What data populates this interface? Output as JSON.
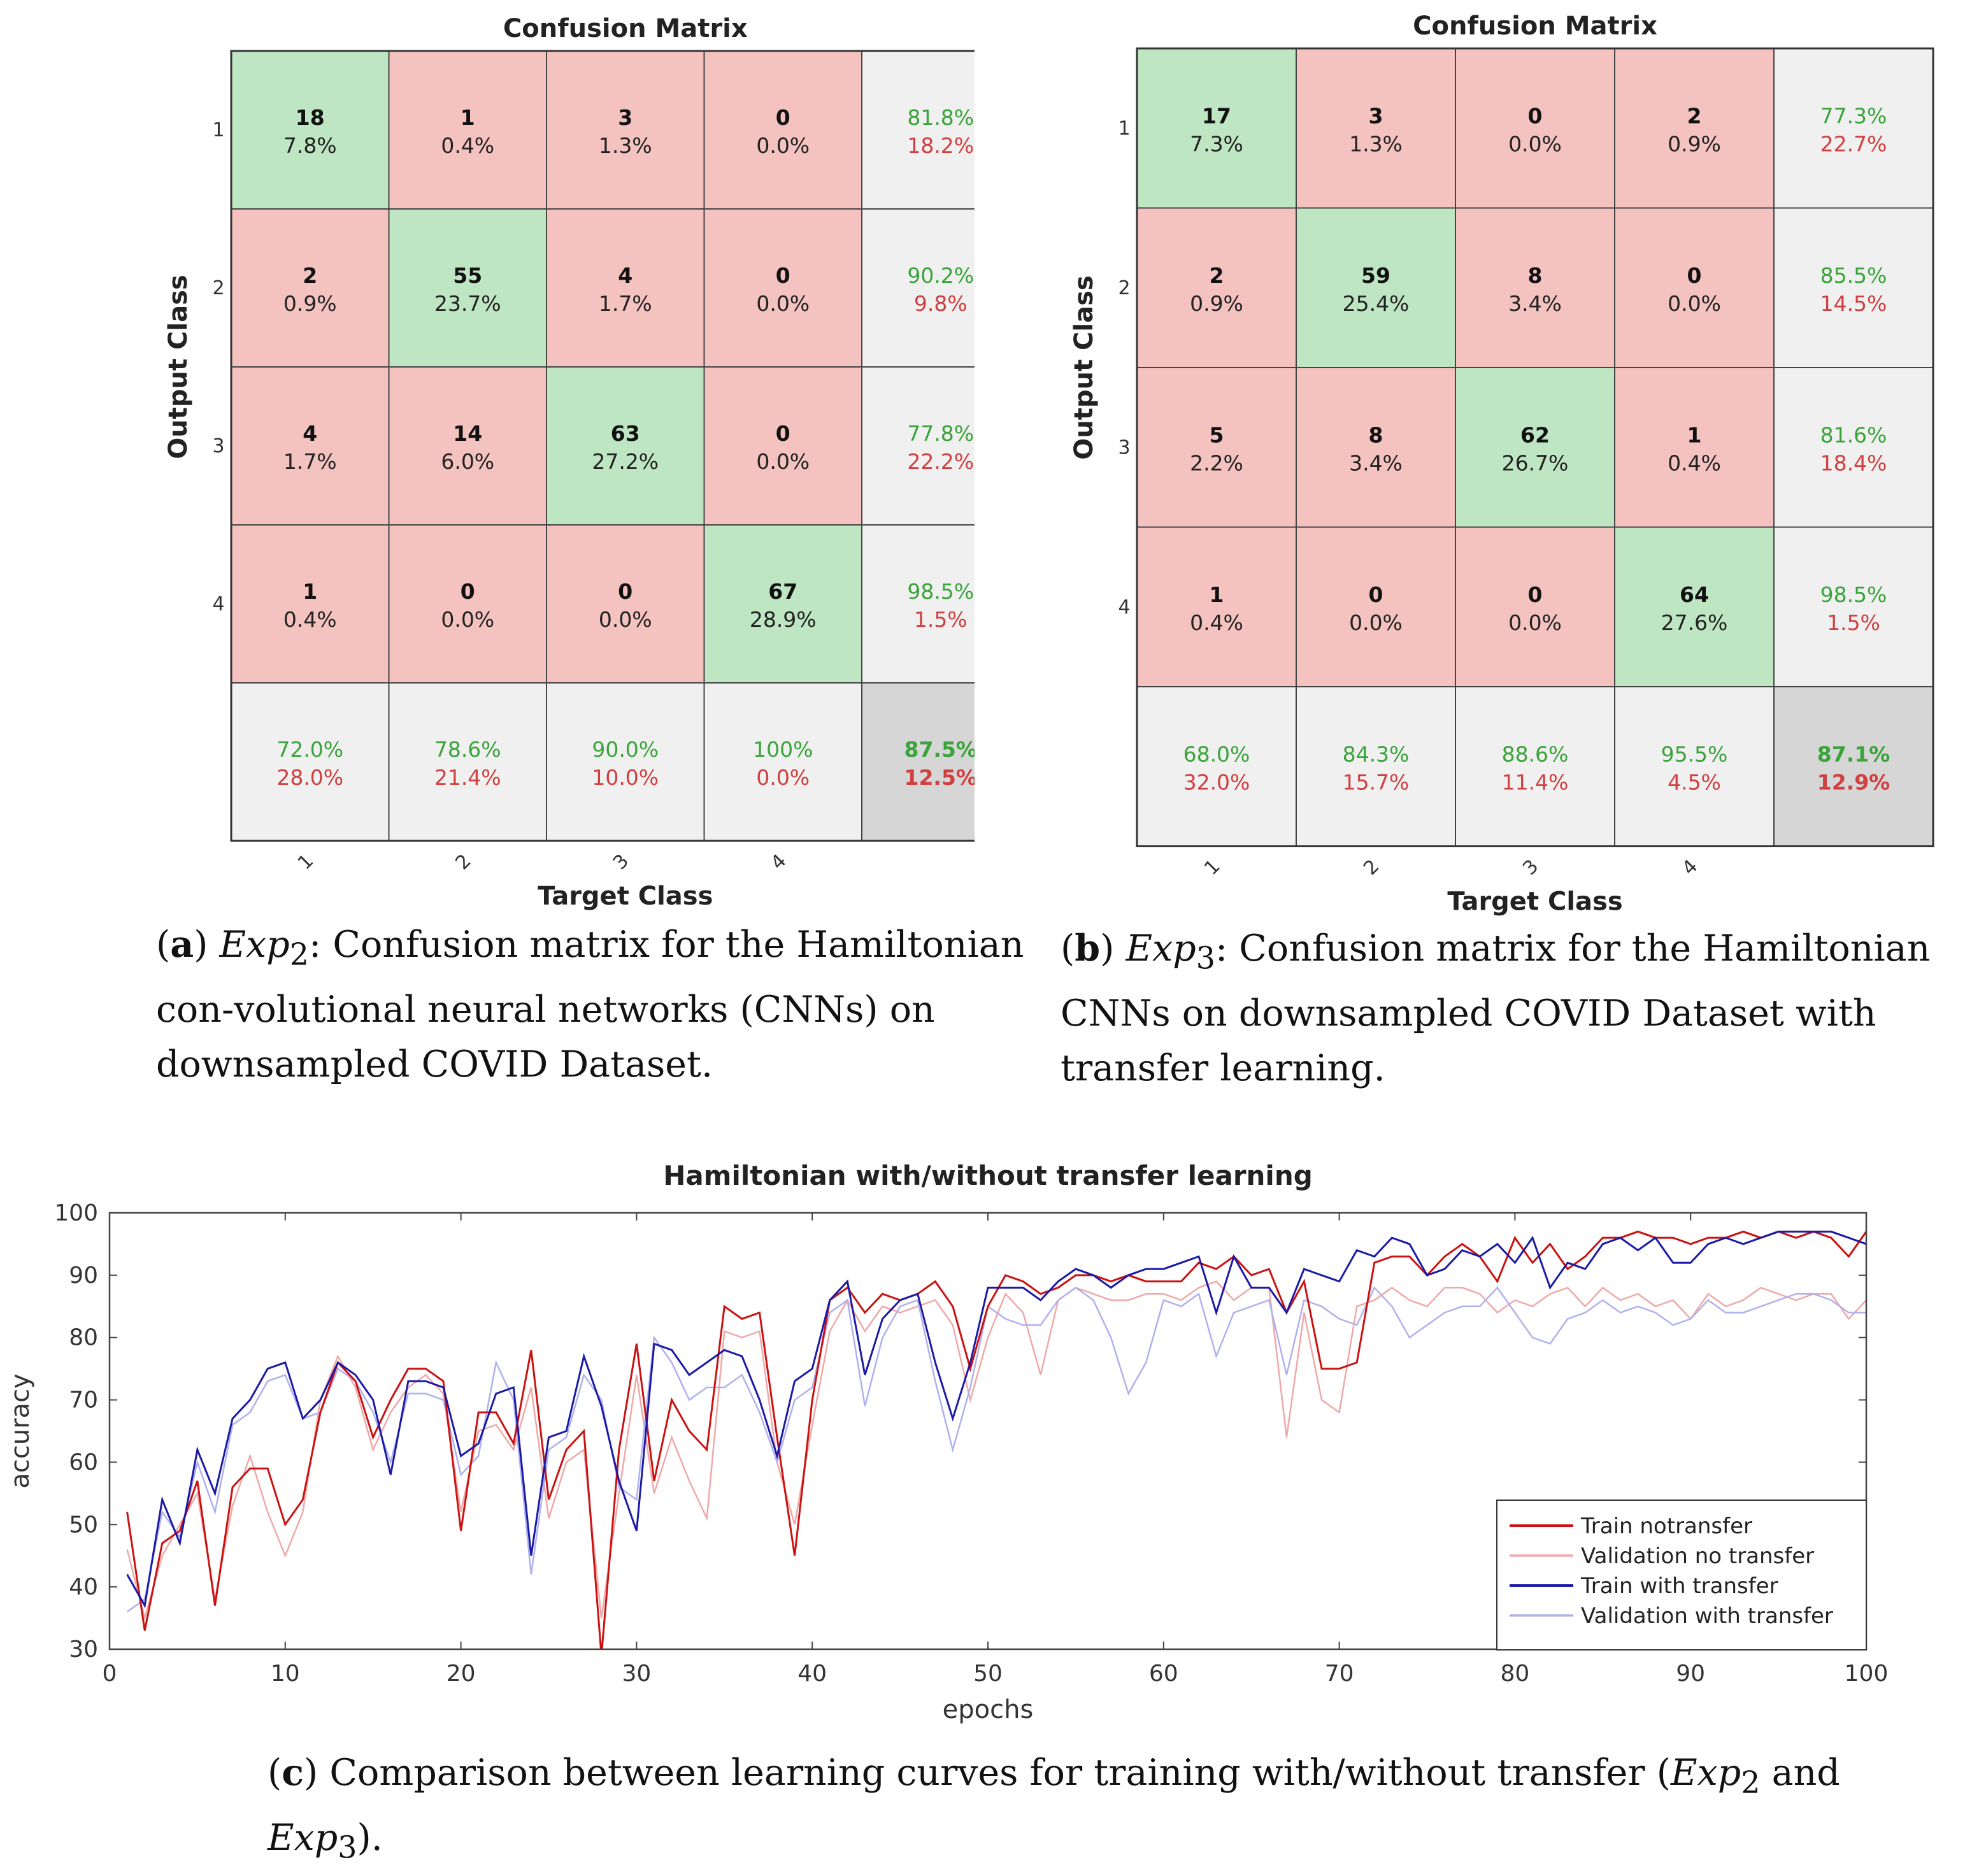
{
  "colors": {
    "correct_cell": "#bfe6c3",
    "incorrect_cell": "#f4c2bf",
    "summary_cell": "#f0f0f0",
    "total_cell": "#d6d6d6",
    "green_text": "#3aa33a",
    "red_text": "#d04040",
    "train_notransfer": "#cc1111",
    "val_notransfer": "#f0a8a8",
    "train_transfer": "#1a1aa8",
    "val_transfer": "#b0b0ee"
  },
  "captions": {
    "a": {
      "letter": "a",
      "sub": "2",
      "text": ": Confusion matrix for the Hamiltonian con-volutional neural networks (CNNs) on downsampled COVID Dataset."
    },
    "b": {
      "letter": "b",
      "sub": "3",
      "text": ":  Confusion matrix for the Hamiltonian CNNs on downsampled COVID Dataset with transfer learning."
    },
    "c": {
      "letter": "c",
      "text_pre": " Comparison between learning curves for training with/without transfer (",
      "and": " and ",
      "text_post": ")."
    },
    "exp": "Exp"
  },
  "chart_data": [
    {
      "type": "heatmap",
      "title": "Confusion Matrix",
      "xlabel": "Target Class",
      "ylabel": "Output Class",
      "x_tick_labels": [
        "1",
        "2",
        "3",
        "4"
      ],
      "y_tick_labels": [
        "1",
        "2",
        "3",
        "4"
      ],
      "counts": [
        [
          18,
          1,
          3,
          0
        ],
        [
          2,
          55,
          4,
          0
        ],
        [
          4,
          14,
          63,
          0
        ],
        [
          1,
          0,
          0,
          67
        ]
      ],
      "percents": [
        [
          "7.8%",
          "0.4%",
          "1.3%",
          "0.0%"
        ],
        [
          "0.9%",
          "23.7%",
          "1.7%",
          "0.0%"
        ],
        [
          "1.7%",
          "6.0%",
          "27.2%",
          "0.0%"
        ],
        [
          "0.4%",
          "0.0%",
          "0.0%",
          "28.9%"
        ]
      ],
      "row_summary": [
        [
          "81.8%",
          "18.2%"
        ],
        [
          "90.2%",
          "9.8%"
        ],
        [
          "77.8%",
          "22.2%"
        ],
        [
          "98.5%",
          "1.5%"
        ]
      ],
      "col_summary": [
        [
          "72.0%",
          "28.0%"
        ],
        [
          "78.6%",
          "21.4%"
        ],
        [
          "90.0%",
          "10.0%"
        ],
        [
          "100%",
          "0.0%"
        ]
      ],
      "total": [
        "87.5%",
        "12.5%"
      ]
    },
    {
      "type": "heatmap",
      "title": "Confusion Matrix",
      "xlabel": "Target Class",
      "ylabel": "Output Class",
      "x_tick_labels": [
        "1",
        "2",
        "3",
        "4"
      ],
      "y_tick_labels": [
        "1",
        "2",
        "3",
        "4"
      ],
      "counts": [
        [
          17,
          3,
          0,
          2
        ],
        [
          2,
          59,
          8,
          0
        ],
        [
          5,
          8,
          62,
          1
        ],
        [
          1,
          0,
          0,
          64
        ]
      ],
      "percents": [
        [
          "7.3%",
          "1.3%",
          "0.0%",
          "0.9%"
        ],
        [
          "0.9%",
          "25.4%",
          "3.4%",
          "0.0%"
        ],
        [
          "2.2%",
          "3.4%",
          "26.7%",
          "0.4%"
        ],
        [
          "0.4%",
          "0.0%",
          "0.0%",
          "27.6%"
        ]
      ],
      "row_summary": [
        [
          "77.3%",
          "22.7%"
        ],
        [
          "85.5%",
          "14.5%"
        ],
        [
          "81.6%",
          "18.4%"
        ],
        [
          "98.5%",
          "1.5%"
        ]
      ],
      "col_summary": [
        [
          "68.0%",
          "32.0%"
        ],
        [
          "84.3%",
          "15.7%"
        ],
        [
          "88.6%",
          "11.4%"
        ],
        [
          "95.5%",
          "4.5%"
        ]
      ],
      "total": [
        "87.1%",
        "12.9%"
      ]
    },
    {
      "type": "line",
      "title": "Hamiltonian with/without transfer learning",
      "xlabel": "epochs",
      "ylabel": "accuracy",
      "xlim": [
        0,
        100
      ],
      "ylim": [
        30,
        100
      ],
      "x_ticks": [
        0,
        10,
        20,
        30,
        40,
        50,
        60,
        70,
        80,
        90,
        100
      ],
      "y_ticks": [
        30,
        40,
        50,
        60,
        70,
        80,
        90,
        100
      ],
      "legend_position": "bottom-right",
      "x": [
        1,
        2,
        3,
        4,
        5,
        6,
        7,
        8,
        9,
        10,
        11,
        12,
        13,
        14,
        15,
        16,
        17,
        18,
        19,
        20,
        21,
        22,
        23,
        24,
        25,
        26,
        27,
        28,
        29,
        30,
        31,
        32,
        33,
        34,
        35,
        36,
        37,
        38,
        39,
        40,
        41,
        42,
        43,
        44,
        45,
        46,
        47,
        48,
        49,
        50,
        51,
        52,
        53,
        54,
        55,
        56,
        57,
        58,
        59,
        60,
        61,
        62,
        63,
        64,
        65,
        66,
        67,
        68,
        69,
        70,
        71,
        72,
        73,
        74,
        75,
        76,
        77,
        78,
        79,
        80,
        81,
        82,
        83,
        84,
        85,
        86,
        87,
        88,
        89,
        90,
        91,
        92,
        93,
        94,
        95,
        96,
        97,
        98,
        99,
        100
      ],
      "series": [
        {
          "name": "Train notransfer",
          "values": [
            52,
            33,
            47,
            49,
            57,
            37,
            56,
            59,
            59,
            50,
            54,
            68,
            76,
            73,
            64,
            70,
            75,
            75,
            73,
            49,
            68,
            68,
            63,
            78,
            54,
            62,
            65,
            29,
            62,
            79,
            57,
            70,
            65,
            62,
            85,
            83,
            84,
            64,
            45,
            70,
            86,
            88,
            84,
            87,
            86,
            87,
            89,
            85,
            75,
            85,
            90,
            89,
            87,
            88,
            90,
            90,
            89,
            90,
            89,
            89,
            89,
            92,
            91,
            93,
            90,
            91,
            84,
            89,
            75,
            75,
            76,
            92,
            93,
            93,
            90,
            93,
            95,
            93,
            89,
            96,
            92,
            95,
            91,
            93,
            96,
            96,
            97,
            96,
            96,
            95,
            96,
            96,
            97,
            96,
            97,
            96,
            97,
            96,
            93,
            97
          ]
        },
        {
          "name": "Validation no transfer",
          "values": [
            46,
            35,
            45,
            50,
            55,
            38,
            53,
            61,
            52,
            45,
            52,
            70,
            77,
            72,
            62,
            68,
            72,
            74,
            71,
            52,
            65,
            66,
            62,
            72,
            51,
            60,
            62,
            35,
            55,
            74,
            55,
            64,
            57,
            51,
            81,
            80,
            81,
            60,
            50,
            66,
            81,
            86,
            81,
            85,
            84,
            85,
            86,
            82,
            70,
            80,
            87,
            84,
            74,
            86,
            88,
            87,
            86,
            86,
            87,
            87,
            86,
            88,
            89,
            86,
            88,
            88,
            64,
            84,
            70,
            68,
            85,
            86,
            88,
            86,
            85,
            88,
            88,
            87,
            84,
            86,
            85,
            87,
            88,
            85,
            88,
            86,
            87,
            85,
            86,
            83,
            87,
            85,
            86,
            88,
            87,
            86,
            87,
            87,
            83,
            86
          ]
        },
        {
          "name": "Train with transfer",
          "values": [
            42,
            37,
            54,
            47,
            62,
            55,
            67,
            70,
            75,
            76,
            67,
            70,
            76,
            74,
            70,
            58,
            73,
            73,
            72,
            61,
            63,
            71,
            72,
            45,
            64,
            65,
            77,
            69,
            57,
            49,
            79,
            78,
            74,
            76,
            78,
            77,
            70,
            61,
            73,
            75,
            86,
            89,
            74,
            83,
            86,
            87,
            76,
            67,
            76,
            88,
            88,
            88,
            86,
            89,
            91,
            90,
            88,
            90,
            91,
            91,
            92,
            93,
            84,
            93,
            88,
            88,
            84,
            91,
            90,
            89,
            94,
            93,
            96,
            95,
            90,
            91,
            94,
            93,
            95,
            92,
            96,
            88,
            92,
            91,
            95,
            96,
            94,
            96,
            92,
            92,
            95,
            96,
            95,
            96,
            97,
            97,
            97,
            97,
            96,
            95
          ]
        },
        {
          "name": "Validation with transfer",
          "values": [
            36,
            38,
            52,
            48,
            60,
            52,
            66,
            68,
            73,
            74,
            67,
            68,
            75,
            73,
            68,
            60,
            71,
            71,
            70,
            58,
            61,
            76,
            70,
            42,
            62,
            64,
            74,
            70,
            56,
            54,
            80,
            76,
            70,
            72,
            72,
            74,
            68,
            60,
            70,
            72,
            84,
            86,
            69,
            80,
            85,
            86,
            73,
            62,
            72,
            85,
            83,
            82,
            82,
            86,
            88,
            86,
            80,
            71,
            76,
            86,
            85,
            87,
            77,
            84,
            85,
            86,
            74,
            86,
            85,
            83,
            82,
            88,
            85,
            80,
            82,
            84,
            85,
            85,
            88,
            84,
            80,
            79,
            83,
            84,
            86,
            84,
            85,
            84,
            82,
            83,
            86,
            84,
            84,
            85,
            86,
            87,
            87,
            86,
            84,
            84
          ]
        }
      ]
    }
  ]
}
